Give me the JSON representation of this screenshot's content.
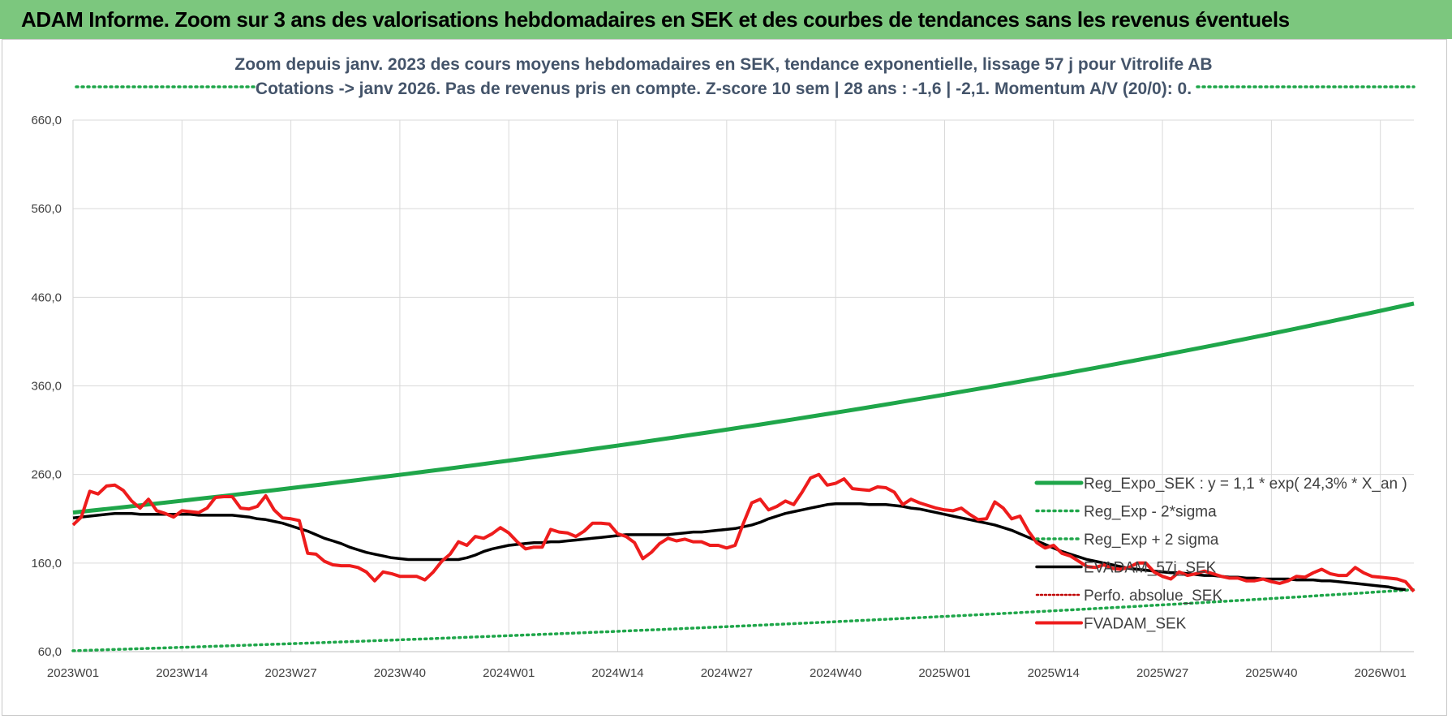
{
  "banner": {
    "title": "ADAM Informe. Zoom sur 3 ans des valorisations hebdomadaires en SEK et des courbes de tendances sans les revenus éventuels"
  },
  "colors": {
    "banner_bg": "#7cc77e",
    "regression": "#1fa64a",
    "price": "#ee1c1c",
    "smoothed": "#000000",
    "perfo": "#c00000",
    "grid": "#d9d9d9",
    "subtitle": "#44546a"
  },
  "chart_data": {
    "type": "line",
    "title_line1": "Zoom depuis janv. 2023 des cours moyens hebdomadaires en SEK, tendance exponentielle, lissage 57 j pour Vitrolife AB",
    "title_line2": "Cotations -> janv 2026. Pas de revenus pris en compte. Z-score 10 sem | 28 ans : -1,6 | -2,1. Momentum A/V (20/0): 0.",
    "ylim": [
      60,
      660
    ],
    "y_ticks": [
      "60,0",
      "160,0",
      "260,0",
      "360,0",
      "460,0",
      "560,0",
      "660,0"
    ],
    "x_ticks": [
      "2023W01",
      "2023W14",
      "2023W27",
      "2023W40",
      "2024W01",
      "2024W14",
      "2024W27",
      "2024W40",
      "2025W01",
      "2025W14",
      "2025W27",
      "2025W40",
      "2026W01"
    ],
    "x_tick_week_index": [
      0,
      13,
      26,
      39,
      52,
      65,
      78,
      91,
      104,
      117,
      130,
      143,
      156
    ],
    "grid": true,
    "legend_position": "right",
    "series": [
      {
        "name": "Reg_Expo_SEK : y = 1,1 * exp( 24,3% * X_an )",
        "style": "solid-thick",
        "endpoints": [
          [
            0,
            217
          ],
          [
            160,
            453
          ]
        ]
      },
      {
        "name": "Reg_Exp - 2*sigma",
        "style": "dotted",
        "endpoints": [
          [
            0,
            61
          ],
          [
            160,
            130
          ]
        ]
      },
      {
        "name": "Reg_Exp + 2 sigma",
        "style": "dotted",
        "note_visible": "flat dotted lines at top, partly hidden by title"
      },
      {
        "name": "EVADAM_57j_SEK",
        "style": "solid-medium",
        "values": [
          211,
          212,
          213,
          214,
          215,
          216,
          216,
          216,
          215,
          215,
          215,
          215,
          215,
          215,
          215,
          214,
          214,
          214,
          214,
          214,
          213,
          212,
          210,
          209,
          207,
          205,
          202,
          199,
          196,
          192,
          188,
          185,
          182,
          178,
          175,
          172,
          170,
          168,
          166,
          165,
          164,
          164,
          164,
          164,
          164,
          164,
          164,
          166,
          169,
          173,
          176,
          178,
          180,
          181,
          182,
          183,
          183,
          184,
          184,
          185,
          186,
          187,
          188,
          189,
          190,
          191,
          192,
          192,
          192,
          192,
          192,
          192,
          193,
          194,
          195,
          195,
          196,
          197,
          198,
          199,
          201,
          203,
          206,
          210,
          213,
          216,
          218,
          220,
          222,
          224,
          226,
          227,
          227,
          227,
          227,
          226,
          226,
          226,
          225,
          224,
          222,
          221,
          219,
          217,
          215,
          213,
          211,
          209,
          207,
          205,
          203,
          200,
          197,
          193,
          189,
          185,
          181,
          177,
          173,
          170,
          167,
          164,
          162,
          160,
          158,
          156,
          154,
          153,
          152,
          151,
          150,
          149,
          149,
          148,
          147,
          146,
          146,
          145,
          144,
          144,
          143,
          143,
          142,
          142,
          142,
          142,
          141,
          141,
          141,
          140,
          140,
          139,
          138,
          137,
          136,
          135,
          134,
          133,
          131,
          130
        ]
      },
      {
        "name": "Perfo. absolue_SEK",
        "style": "dotted",
        "note_visible": "legend only"
      },
      {
        "name": "FVADAM_SEK",
        "style": "solid-thick",
        "values": [
          203,
          212,
          241,
          238,
          247,
          248,
          242,
          230,
          222,
          232,
          219,
          216,
          212,
          219,
          218,
          217,
          222,
          234,
          235,
          235,
          222,
          221,
          224,
          236,
          220,
          211,
          210,
          208,
          171,
          170,
          162,
          158,
          157,
          157,
          155,
          150,
          140,
          150,
          148,
          145,
          145,
          145,
          141,
          150,
          162,
          170,
          184,
          180,
          190,
          188,
          193,
          200,
          194,
          184,
          176,
          178,
          178,
          198,
          195,
          194,
          190,
          196,
          205,
          205,
          204,
          193,
          190,
          183,
          165,
          172,
          182,
          188,
          185,
          187,
          184,
          184,
          180,
          180,
          177,
          180,
          205,
          228,
          232,
          220,
          224,
          230,
          226,
          240,
          256,
          260,
          248,
          250,
          255,
          244,
          243,
          242,
          246,
          245,
          240,
          226,
          232,
          228,
          225,
          222,
          220,
          219,
          222,
          215,
          209,
          210,
          229,
          222,
          210,
          213,
          196,
          183,
          177,
          180,
          171,
          168,
          162,
          156,
          155,
          158,
          154,
          153,
          155,
          160,
          160,
          150,
          145,
          142,
          150,
          146,
          148,
          151,
          148,
          145,
          143,
          143,
          140,
          140,
          142,
          139,
          137,
          140,
          145,
          144,
          149,
          153,
          148,
          146,
          146,
          155,
          149,
          145,
          144,
          143,
          142,
          139,
          128
        ]
      }
    ]
  }
}
